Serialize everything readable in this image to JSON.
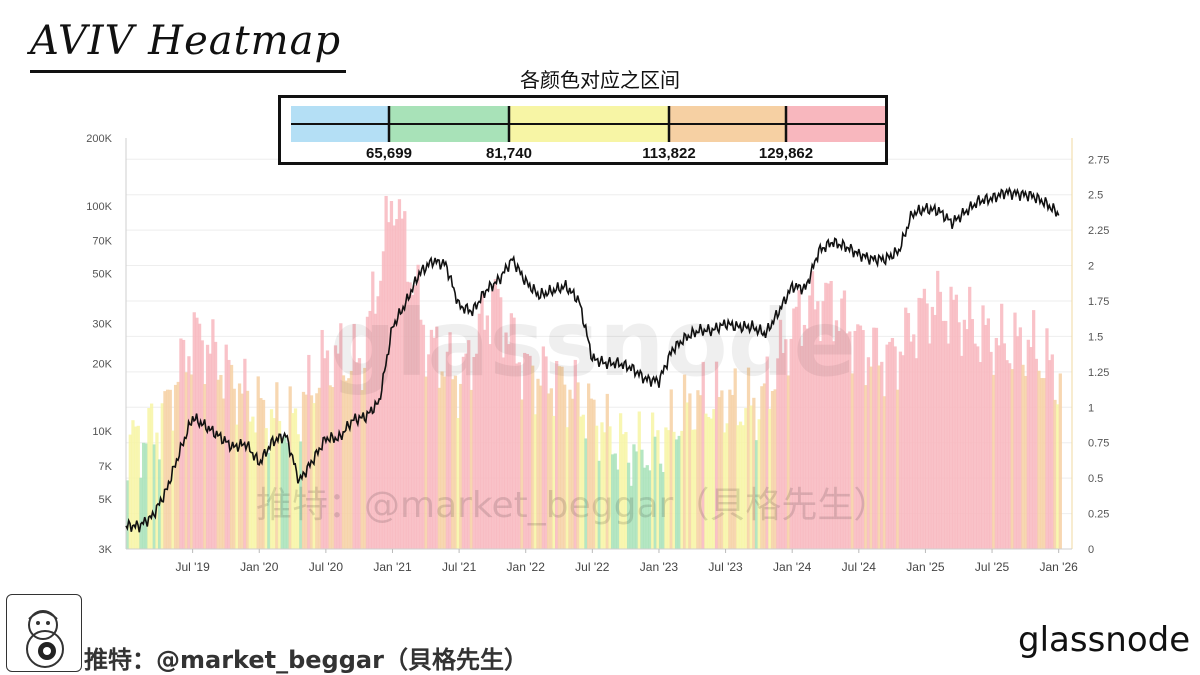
{
  "header": {
    "title": "AVIV Heatmap",
    "legend_title": "各颜色对应之区间"
  },
  "legend": {
    "thresholds": [
      "65,699",
      "81,740",
      "113,822",
      "129,862"
    ],
    "bands": [
      {
        "color": "#b4dff5"
      },
      {
        "color": "#a8e2b8"
      },
      {
        "color": "#f7f5a5"
      },
      {
        "color": "#f6d0a3"
      },
      {
        "color": "#f8b7be"
      }
    ]
  },
  "watermark": {
    "brand": "glassnode",
    "handle": "推特：@market_beggar（貝格先生）"
  },
  "footer": {
    "handle": "推特：@market_beggar（貝格先生）",
    "brand": "glassnode"
  },
  "chart_data": {
    "type": "line",
    "title": "AVIV Heatmap",
    "x_ticks": [
      "Jul '19",
      "Jan '20",
      "Jul '20",
      "Jan '21",
      "Jul '21",
      "Jan '22",
      "Jul '22",
      "Jan '23",
      "Jul '23",
      "Jan '24",
      "Jul '24",
      "Jan '25",
      "Jul '25",
      "Jan '26"
    ],
    "y_left_ticks": [
      "3K",
      "5K",
      "7K",
      "10K",
      "20K",
      "30K",
      "50K",
      "70K",
      "100K",
      "200K"
    ],
    "y_left_values": [
      3000,
      5000,
      7000,
      10000,
      20000,
      30000,
      50000,
      70000,
      100000,
      200000
    ],
    "y_left_scale": "log",
    "y_left_range": [
      3000,
      200000
    ],
    "y_right_ticks": [
      "0",
      "0.25",
      "0.5",
      "0.75",
      "1",
      "1.25",
      "1.5",
      "1.75",
      "2",
      "2.25",
      "2.5",
      "2.75"
    ],
    "y_right_range": [
      0,
      2.9
    ],
    "grid": true,
    "colors": {
      "blue": "#b4dff5",
      "green": "#a8e2b8",
      "yellow": "#f7f5a5",
      "orange": "#f6d0a3",
      "red": "#f8b7be",
      "price_line": "#111111"
    },
    "series": [
      {
        "kind": "price",
        "x": [
          2019.0,
          2019.1,
          2019.2,
          2019.3,
          2019.4,
          2019.5,
          2019.6,
          2019.7,
          2019.8,
          2019.9,
          2020.0,
          2020.1,
          2020.2,
          2020.3,
          2020.4,
          2020.5,
          2020.6,
          2020.7,
          2020.8,
          2020.9,
          2021.0,
          2021.1,
          2021.2,
          2021.3,
          2021.4,
          2021.5,
          2021.6,
          2021.7,
          2021.8,
          2021.9,
          2022.0,
          2022.1,
          2022.2,
          2022.3,
          2022.4,
          2022.5,
          2022.6,
          2022.7,
          2022.8,
          2022.9,
          2023.0,
          2023.1,
          2023.2,
          2023.3,
          2023.4,
          2023.5,
          2023.6,
          2023.7,
          2023.8,
          2023.9,
          2024.0,
          2024.1,
          2024.2,
          2024.3,
          2024.4,
          2024.5,
          2024.6,
          2024.7,
          2024.8,
          2024.9,
          2025.0,
          2025.1,
          2025.2,
          2025.3,
          2025.4,
          2025.5,
          2025.6,
          2025.7,
          2025.8,
          2025.9,
          2026.0
        ],
        "y": [
          3800,
          3800,
          4200,
          5400,
          8000,
          11500,
          10500,
          9500,
          8500,
          8800,
          7200,
          9000,
          9600,
          6000,
          7400,
          9300,
          9300,
          11200,
          11600,
          13500,
          29000,
          37000,
          50000,
          57000,
          55000,
          36000,
          34000,
          42000,
          47000,
          58000,
          46000,
          40000,
          42000,
          44000,
          38000,
          21000,
          20000,
          20000,
          19000,
          17000,
          16700,
          23000,
          26000,
          28000,
          28000,
          30000,
          29000,
          29000,
          27000,
          34000,
          44000,
          43000,
          63000,
          69000,
          66000,
          61000,
          58000,
          58000,
          63000,
          92000,
          97000,
          95000,
          84000,
          94000,
          105000,
          108000,
          115000,
          113000,
          111000,
          103000,
          92000
        ]
      },
      {
        "kind": "aviv",
        "x": [
          2019.0,
          2019.25,
          2019.5,
          2019.75,
          2020.0,
          2020.25,
          2020.5,
          2020.75,
          2021.0,
          2021.25,
          2021.5,
          2021.75,
          2022.0,
          2022.25,
          2022.5,
          2022.75,
          2023.0,
          2023.25,
          2023.5,
          2023.75,
          2024.0,
          2024.25,
          2024.5,
          2024.75,
          2025.0,
          2025.25,
          2025.5,
          2025.75,
          2026.0
        ],
        "y": [
          0.8,
          0.95,
          1.45,
          1.2,
          1.05,
          0.9,
          1.25,
          1.3,
          2.6,
          1.4,
          1.1,
          1.85,
          1.3,
          1.1,
          0.9,
          0.78,
          0.75,
          0.95,
          1.05,
          1.1,
          1.55,
          1.7,
          1.5,
          1.4,
          1.65,
          1.6,
          1.55,
          1.45,
          1.1
        ]
      }
    ]
  }
}
